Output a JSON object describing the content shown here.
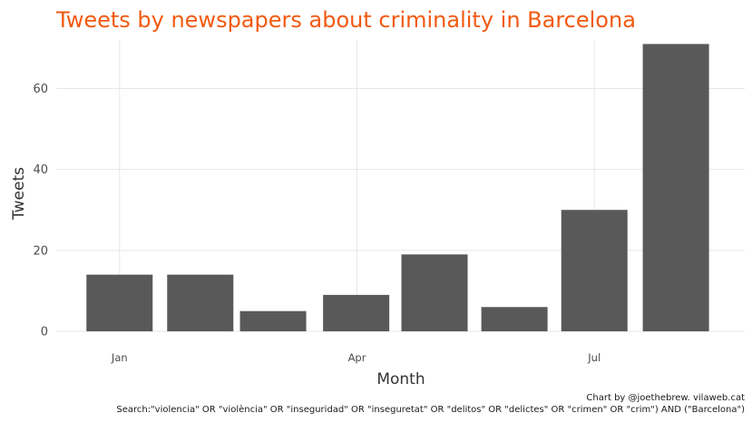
{
  "chart_data": {
    "type": "bar",
    "title": "Tweets by newspapers about criminality in Barcelona",
    "xlabel": "Month",
    "ylabel": "Tweets",
    "x_tick_labels": [
      {
        "label": "Jan",
        "month": 1
      },
      {
        "label": "Apr",
        "month": 4
      },
      {
        "label": "Jul",
        "month": 7
      }
    ],
    "y_ticks": [
      0,
      20,
      40,
      60
    ],
    "ylim": [
      0,
      72
    ],
    "xlim": [
      0.2,
      8.9
    ],
    "bars": [
      {
        "month": 1.0,
        "value": 14
      },
      {
        "month": 2.02,
        "value": 14
      },
      {
        "month": 2.94,
        "value": 5
      },
      {
        "month": 3.99,
        "value": 9
      },
      {
        "month": 4.98,
        "value": 19
      },
      {
        "month": 5.99,
        "value": 6
      },
      {
        "month": 7.0,
        "value": 30
      },
      {
        "month": 8.03,
        "value": 71
      }
    ],
    "grid": true,
    "legend": "none",
    "colors": {
      "title": "#F25A11",
      "bar": "#595959"
    }
  },
  "caption": {
    "line1": "Chart by @joethebrew. vilaweb.cat",
    "line2": "Search:\"violencia\" OR \"violència\" OR \"inseguridad\" OR \"inseguretat\" OR \"delitos\" OR \"delictes\" OR \"crimen\" OR \"crim\") AND (\"Barcelona\")"
  }
}
